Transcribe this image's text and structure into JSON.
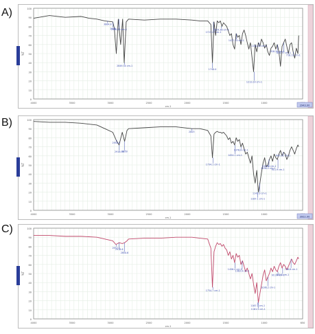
{
  "panels": [
    "A)",
    "B)",
    "C)"
  ],
  "chart_data": [
    {
      "type": "line",
      "panel": "A)",
      "color": "#444444",
      "xlim": [
        4000,
        600
      ],
      "ylim": [
        0,
        100
      ],
      "x_ticks": [
        "4000",
        "3500",
        "3000",
        "2500",
        "2000",
        "1500",
        "1000",
        "650"
      ],
      "y_ticks": [
        "100",
        "90",
        "80",
        "70",
        "60",
        "50",
        "40",
        "30",
        "20",
        "10",
        "0"
      ],
      "xlabel": "cm-1",
      "ylabel": "%T",
      "x": [
        4000,
        3800,
        3600,
        3400,
        3300,
        3200,
        3100,
        3000,
        2980,
        2955,
        2930,
        2900,
        2875,
        2855,
        2830,
        2800,
        2600,
        2400,
        2200,
        2000,
        1900,
        1800,
        1760,
        1740,
        1720,
        1700,
        1680,
        1660,
        1640,
        1620,
        1600,
        1580,
        1560,
        1540,
        1520,
        1500,
        1480,
        1460,
        1440,
        1420,
        1400,
        1380,
        1360,
        1340,
        1320,
        1300,
        1280,
        1260,
        1240,
        1220,
        1200,
        1180,
        1160,
        1140,
        1120,
        1100,
        1080,
        1060,
        1040,
        1020,
        1000,
        980,
        960,
        940,
        920,
        900,
        880,
        860,
        840,
        820,
        800,
        780,
        760,
        740,
        720,
        700,
        680,
        660,
        650
      ],
      "y": [
        89,
        92,
        90,
        91,
        89,
        88,
        86,
        85,
        78,
        50,
        88,
        60,
        88,
        40,
        85,
        88,
        87,
        88,
        88,
        87,
        86,
        86,
        82,
        40,
        85,
        70,
        86,
        84,
        86,
        80,
        84,
        82,
        80,
        75,
        70,
        72,
        60,
        55,
        72,
        68,
        70,
        60,
        72,
        76,
        70,
        62,
        55,
        62,
        46,
        30,
        60,
        52,
        62,
        58,
        66,
        62,
        56,
        60,
        52,
        48,
        56,
        58,
        62,
        55,
        60,
        52,
        36,
        58,
        62,
        66,
        58,
        50,
        60,
        62,
        52,
        45,
        56,
        50,
        70
      ],
      "annotations": [
        "3064.8",
        "2998",
        "2920.65 cm-1",
        "2849.54 cm-1",
        "1740.0",
        "1727.27 cm-1",
        "1629.36 cm-1",
        "1437.70 cm-1",
        "1212.03 cm-1",
        "1150.42 cm-1",
        "918.26 cm-1",
        "838.77 cm-1",
        "718.12 cm-1"
      ],
      "status": "2943.00"
    },
    {
      "type": "line",
      "panel": "B)",
      "color": "#444444",
      "xlim": [
        4000,
        600
      ],
      "ylim": [
        0,
        100
      ],
      "x_ticks": [
        "4000",
        "3500",
        "3000",
        "2500",
        "2000",
        "1500",
        "1000",
        "650"
      ],
      "y_ticks": [
        "100",
        "90",
        "80",
        "70",
        "60",
        "50",
        "40",
        "30",
        "20",
        "10",
        "0"
      ],
      "xlabel": "cm-1",
      "ylabel": "%T",
      "x": [
        4000,
        3800,
        3600,
        3400,
        3200,
        3100,
        3000,
        2960,
        2920,
        2880,
        2850,
        2820,
        2800,
        2600,
        2400,
        2200,
        2000,
        1900,
        1800,
        1760,
        1740,
        1720,
        1700,
        1680,
        1660,
        1640,
        1620,
        1600,
        1580,
        1560,
        1540,
        1520,
        1500,
        1480,
        1460,
        1440,
        1420,
        1400,
        1380,
        1360,
        1340,
        1320,
        1300,
        1280,
        1260,
        1240,
        1220,
        1200,
        1180,
        1160,
        1140,
        1120,
        1100,
        1080,
        1060,
        1040,
        1020,
        1000,
        980,
        960,
        940,
        920,
        900,
        880,
        860,
        840,
        820,
        800,
        780,
        760,
        740,
        720,
        700,
        680,
        660,
        650
      ],
      "y": [
        98,
        97,
        97,
        96,
        94,
        90,
        86,
        78,
        72,
        86,
        76,
        88,
        90,
        91,
        92,
        92,
        90,
        90,
        88,
        82,
        58,
        84,
        86,
        87,
        86,
        86,
        85,
        86,
        84,
        82,
        78,
        80,
        74,
        76,
        72,
        80,
        76,
        78,
        70,
        74,
        68,
        62,
        64,
        58,
        52,
        60,
        40,
        30,
        44,
        20,
        30,
        42,
        52,
        58,
        48,
        50,
        56,
        60,
        54,
        62,
        58,
        56,
        62,
        66,
        60,
        64,
        62,
        56,
        60,
        66,
        70,
        66,
        62,
        68,
        72,
        70
      ],
      "annotations": [
        "2956.9",
        "2916.99",
        "2850",
        "2003",
        "1734.1 cm-1",
        "1454.1 cm-1",
        "1378.8 cm-1",
        "1167.1 cm-1",
        "1143.0 cm-1",
        "1036.2 cm-1",
        "1025.6 cm-1",
        "911.9 cm-1",
        "845.32 cm-1"
      ],
      "status": "3922.00"
    },
    {
      "type": "line",
      "panel": "C)",
      "color": "#c0476a",
      "xlim": [
        4000,
        600
      ],
      "ylim": [
        0,
        100
      ],
      "x_ticks": [
        "4000",
        "3500",
        "3000",
        "2500",
        "2000",
        "1500",
        "1000",
        "650"
      ],
      "y_ticks": [
        "100",
        "90",
        "80",
        "70",
        "60",
        "50",
        "40",
        "30",
        "20",
        "10",
        "0"
      ],
      "xlabel": "cm-1",
      "ylabel": "%T",
      "x": [
        4000,
        3800,
        3600,
        3400,
        3200,
        3100,
        3000,
        2960,
        2920,
        2880,
        2850,
        2820,
        2800,
        2600,
        2400,
        2200,
        2000,
        1900,
        1800,
        1760,
        1740,
        1720,
        1700,
        1680,
        1660,
        1640,
        1620,
        1600,
        1580,
        1560,
        1540,
        1520,
        1500,
        1480,
        1460,
        1440,
        1420,
        1400,
        1380,
        1360,
        1340,
        1320,
        1300,
        1280,
        1260,
        1240,
        1220,
        1200,
        1180,
        1160,
        1140,
        1120,
        1100,
        1080,
        1060,
        1040,
        1020,
        1000,
        980,
        960,
        940,
        920,
        900,
        880,
        860,
        840,
        820,
        800,
        780,
        760,
        740,
        720,
        700,
        680,
        660,
        650
      ],
      "y": [
        92,
        92,
        91,
        91,
        90,
        88,
        86,
        82,
        84,
        83,
        84,
        86,
        88,
        89,
        89,
        90,
        90,
        89,
        88,
        78,
        35,
        74,
        80,
        84,
        82,
        83,
        80,
        82,
        78,
        76,
        70,
        74,
        66,
        70,
        62,
        72,
        68,
        70,
        60,
        64,
        58,
        52,
        56,
        50,
        44,
        50,
        38,
        28,
        40,
        18,
        28,
        38,
        48,
        54,
        42,
        46,
        50,
        56,
        52,
        58,
        54,
        52,
        58,
        62,
        56,
        60,
        58,
        54,
        58,
        62,
        66,
        62,
        60,
        64,
        68,
        66
      ],
      "annotations": [
        "2957.1",
        "2918.6",
        "2850.6",
        "1734.7 cm-1",
        "1456.4 cm-1",
        "1363.9 cm-1",
        "1167.1 cm-1",
        "1161.5 cm-1",
        "1036.2 cm-1",
        "911.9 cm-1",
        "852.5 cm-1",
        "746.6 cm-1"
      ],
      "status": ""
    }
  ]
}
